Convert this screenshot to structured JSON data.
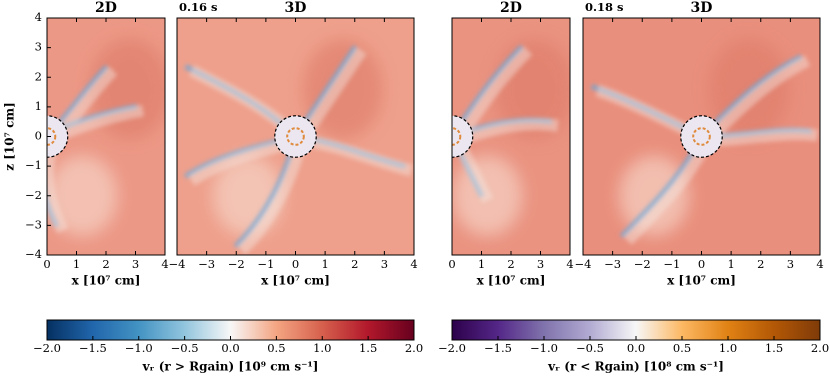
{
  "chart_data": [
    {
      "type": "heatmap",
      "title": "2D",
      "color": "#ec9886",
      "xlim": [
        0,
        4
      ],
      "ylim": [
        -4,
        4
      ],
      "xticks": [
        0,
        1,
        2,
        3,
        4
      ],
      "yticks": [
        {
          "value": -4,
          "label": "−4"
        },
        {
          "value": -3,
          "label": "−3"
        },
        {
          "value": -2,
          "label": "−2"
        },
        {
          "value": -1,
          "label": "−1"
        },
        0,
        1,
        2,
        3,
        4
      ],
      "xlabel": "x [10⁷ cm]",
      "ylabel": "z [10⁷ cm]"
    },
    {
      "type": "heatmap",
      "title": "3D",
      "annotation": "0.16 s",
      "color": "#eea08c",
      "xlim": [
        -4,
        4
      ],
      "ylim": [
        -4,
        4
      ],
      "xticks": [
        {
          "value": -4,
          "label": "−4"
        },
        {
          "value": -3,
          "label": "−3"
        },
        {
          "value": -2,
          "label": "−2"
        },
        {
          "value": -1,
          "label": "−1"
        },
        0,
        1,
        2,
        3,
        4
      ],
      "xlabel": "x [10⁷ cm]"
    },
    {
      "type": "heatmap",
      "title": "2D",
      "color": "#ea9381",
      "xlim": [
        0,
        4
      ],
      "ylim": [
        -4,
        4
      ],
      "xticks": [
        0,
        1,
        2,
        3,
        4
      ],
      "xlabel": "x [10⁷ cm]"
    },
    {
      "type": "heatmap",
      "title": "3D",
      "annotation": "0.18 s",
      "color": "#e98f7d",
      "xlim": [
        -4,
        4
      ],
      "ylim": [
        -4,
        4
      ],
      "xticks": [
        {
          "value": -4,
          "label": "−4"
        },
        {
          "value": -3,
          "label": "−3"
        },
        {
          "value": -2,
          "label": "−2"
        },
        {
          "value": -1,
          "label": "−1"
        },
        0,
        1,
        2,
        3,
        4
      ],
      "xlabel": "x [10⁷ cm]"
    },
    {
      "type": "colorbar",
      "xlim": [
        -2,
        2
      ],
      "colors": [
        "#053061",
        "#2166ac",
        "#4393c3",
        "#92c5de",
        "#f7f7f7",
        "#f4a582",
        "#d6604d",
        "#b2182b",
        "#67001f"
      ],
      "xticks": [
        {
          "value": -2,
          "label": "−2.0"
        },
        {
          "value": -1.5,
          "label": "−1.5"
        },
        {
          "value": -1,
          "label": "−1.0"
        },
        {
          "value": -0.5,
          "label": "−0.5"
        },
        {
          "value": 0,
          "label": "0.0"
        },
        0.5,
        {
          "value": 1,
          "label": "1.0"
        },
        1.5,
        {
          "value": 2,
          "label": "2.0"
        }
      ],
      "xlabel": "vᵣ (r > Rgain) [10⁹ cm s⁻¹]"
    },
    {
      "type": "colorbar",
      "xlim": [
        -2,
        2
      ],
      "colors": [
        "#2d004b",
        "#542788",
        "#8073ac",
        "#b2abd2",
        "#f7f7f7",
        "#fdb863",
        "#e08214",
        "#b35806",
        "#7f3b08"
      ],
      "xticks": [
        {
          "value": -2,
          "label": "−2.0"
        },
        {
          "value": -1.5,
          "label": "−1.5"
        },
        {
          "value": -1,
          "label": "−1.0"
        },
        {
          "value": -0.5,
          "label": "−0.5"
        },
        {
          "value": 0,
          "label": "0.0"
        },
        0.5,
        {
          "value": 1,
          "label": "1.0"
        },
        1.5,
        {
          "value": 2,
          "label": "2.0"
        }
      ],
      "xlabel": "vᵣ (r < Rgain) [10⁸ cm s⁻¹]"
    }
  ]
}
